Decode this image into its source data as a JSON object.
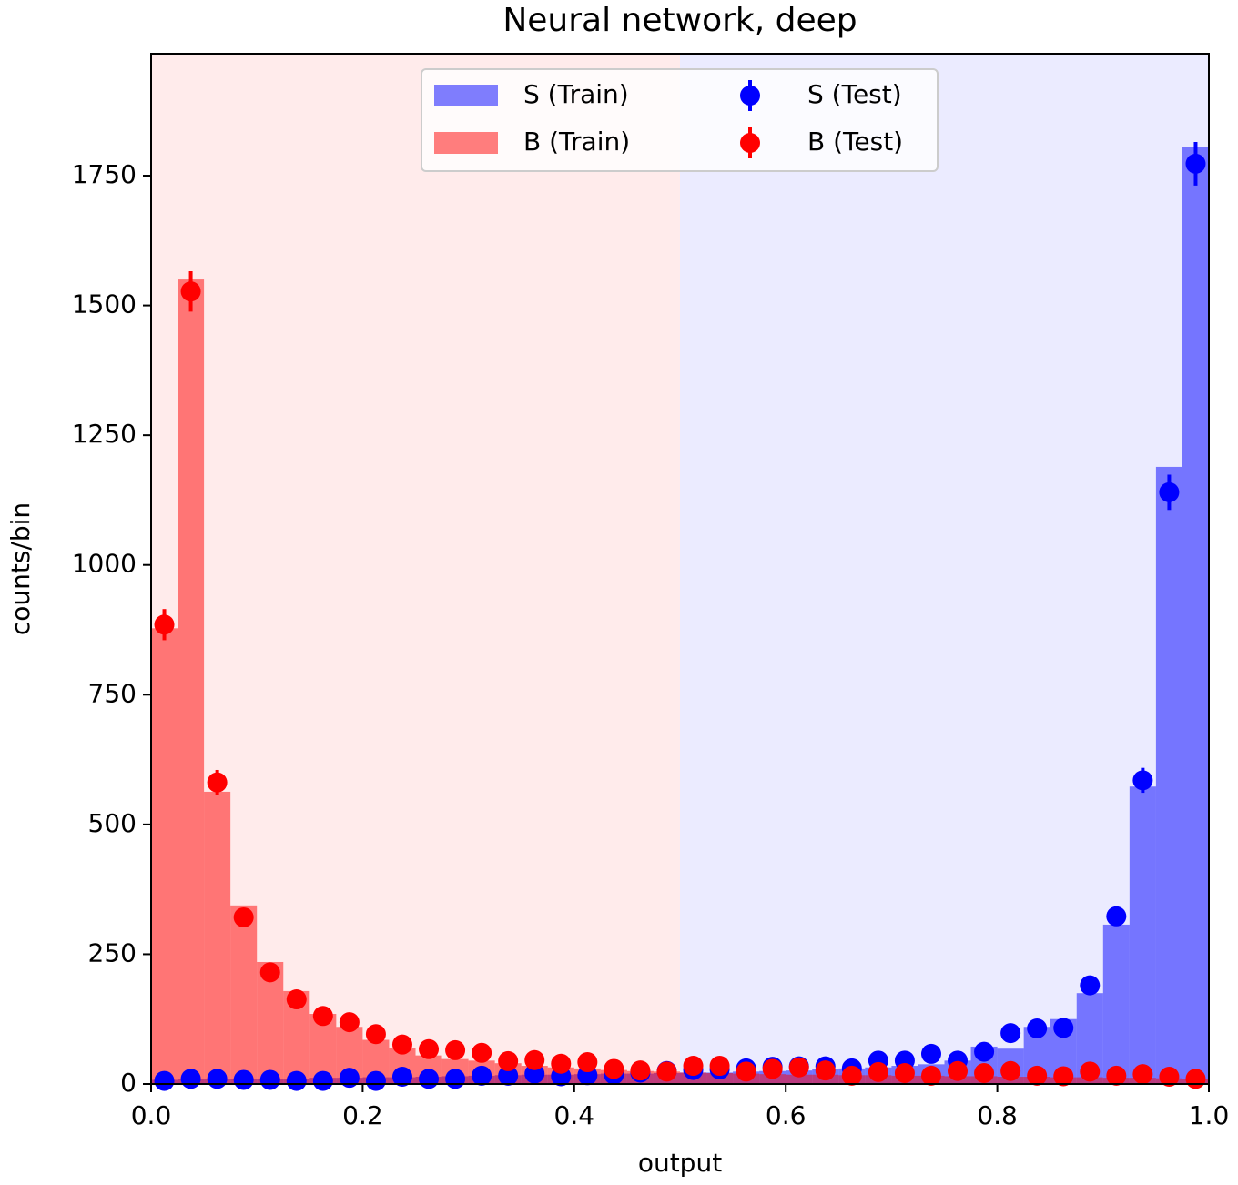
{
  "chart_data": {
    "type": "histogram",
    "title": "Neural network, deep",
    "xlabel": "output",
    "ylabel": "counts/bin",
    "bins": [
      0,
      0.025,
      0.05,
      0.075,
      0.1,
      0.125,
      0.15,
      0.175,
      0.2,
      0.225,
      0.25,
      0.275,
      0.3,
      0.325,
      0.35,
      0.375,
      0.4,
      0.425,
      0.45,
      0.475,
      0.5,
      0.525,
      0.55,
      0.575,
      0.6,
      0.625,
      0.65,
      0.675,
      0.7,
      0.725,
      0.75,
      0.775,
      0.8,
      0.825,
      0.85,
      0.875,
      0.9,
      0.925,
      0.95,
      0.975,
      1
    ],
    "series": [
      {
        "name": "S (Train)",
        "style": "filled",
        "color": "#0000ff",
        "alpha": 0.5,
        "values": [
          8,
          10,
          10,
          10,
          10,
          10,
          12,
          12,
          13,
          13,
          14,
          15,
          16,
          17,
          18,
          18,
          19,
          20,
          20,
          21,
          22,
          22,
          24,
          25,
          26,
          28,
          30,
          32,
          35,
          38,
          45,
          72,
          68,
          110,
          125,
          175,
          307,
          573,
          1189,
          1806
        ]
      },
      {
        "name": "B (Train)",
        "style": "filled",
        "color": "#ff0000",
        "alpha": 0.5,
        "values": [
          878,
          1550,
          563,
          344,
          235,
          179,
          135,
          110,
          85,
          70,
          55,
          48,
          45,
          40,
          35,
          32,
          30,
          27,
          25,
          24,
          22,
          21,
          20,
          19,
          18,
          18,
          17,
          17,
          16,
          16,
          15,
          15,
          14,
          14,
          13,
          13,
          12,
          12,
          11,
          10
        ]
      },
      {
        "name": "S (Test)",
        "style": "points",
        "color": "#0000ff",
        "values": [
          6,
          10,
          10,
          8,
          8,
          6,
          6,
          12,
          6,
          14,
          10,
          10,
          16,
          16,
          20,
          15,
          17,
          18,
          22,
          25,
          27,
          28,
          30,
          33,
          34,
          34,
          30,
          45,
          45,
          58,
          45,
          62,
          98,
          107,
          108,
          190,
          323,
          585,
          1140,
          1773
        ],
        "errors": [
          2,
          3,
          3,
          3,
          3,
          2,
          2,
          3,
          2,
          4,
          3,
          3,
          4,
          4,
          4,
          4,
          4,
          4,
          5,
          5,
          5,
          5,
          5,
          6,
          6,
          6,
          5,
          7,
          7,
          8,
          7,
          8,
          10,
          10,
          10,
          14,
          18,
          24,
          34,
          42
        ]
      },
      {
        "name": "B (Test)",
        "style": "points",
        "color": "#ff0000",
        "values": [
          885,
          1527,
          581,
          321,
          215,
          163,
          131,
          119,
          96,
          76,
          67,
          65,
          60,
          44,
          46,
          39,
          42,
          29,
          26,
          24,
          35,
          35,
          24,
          29,
          32,
          26,
          16,
          23,
          21,
          16,
          25,
          21,
          25,
          16,
          15,
          24,
          16,
          19,
          14,
          10
        ],
        "errors": [
          30,
          39,
          24,
          18,
          15,
          13,
          11,
          11,
          10,
          9,
          8,
          8,
          8,
          7,
          7,
          6,
          6,
          5,
          5,
          5,
          6,
          6,
          5,
          5,
          6,
          5,
          4,
          5,
          5,
          4,
          5,
          5,
          5,
          4,
          4,
          5,
          4,
          4,
          4,
          3
        ]
      }
    ],
    "xlim": [
      0,
      1
    ],
    "ylim": [
      0,
      1985
    ],
    "xticks": [
      {
        "value": 0,
        "label": "0.0"
      },
      0.2,
      0.4,
      0.6,
      0.8,
      {
        "value": 1,
        "label": "1.0"
      }
    ],
    "yticks": [
      0,
      250,
      500,
      750,
      1000,
      1250,
      1500,
      1750
    ],
    "legend": "upper center"
  }
}
